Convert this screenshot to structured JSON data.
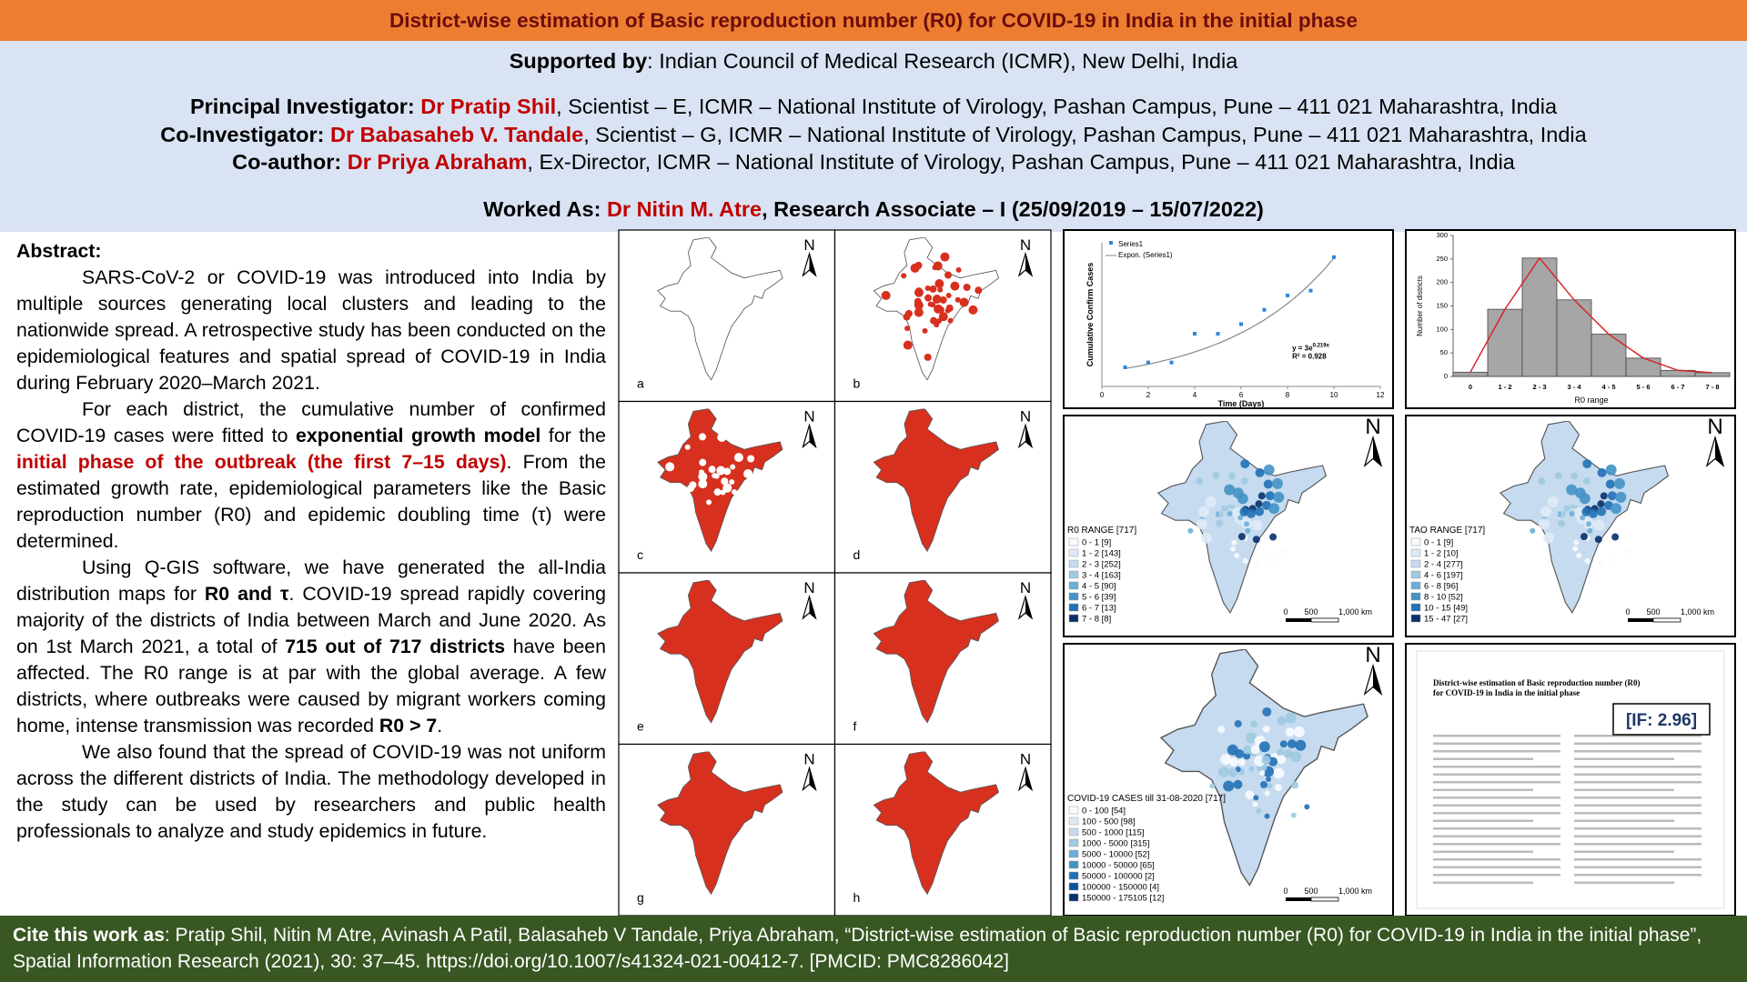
{
  "header": {
    "title": "District-wise estimation of Basic reproduction number (R0) for COVID-19 in India in the initial phase"
  },
  "supported": {
    "label": "Supported by",
    "text": ": Indian Council of Medical Research (ICMR), New Delhi, India"
  },
  "investigators": [
    {
      "role": "Principal Investigator",
      "sep": ": ",
      "name": "Dr Pratip Shil",
      "details": ", Scientist – E, ICMR – National Institute of Virology, Pashan Campus, Pune – 411 021 Maharashtra, India"
    },
    {
      "role": "Co-Investigator",
      "sep": ": ",
      "name": "Dr Babasaheb V. Tandale",
      "details": ", Scientist – G, ICMR – National Institute of Virology, Pashan Campus, Pune – 411 021 Maharashtra, India"
    },
    {
      "role": "Co-author",
      "sep": ": ",
      "name": "Dr Priya Abraham",
      "details": ", Ex-Director, ICMR – National Institute of Virology, Pashan Campus, Pune – 411 021 Maharashtra, India"
    }
  ],
  "worked_as": {
    "label": "Worked As: ",
    "name": "Dr Nitin M. Atre",
    "details": ", Research Associate – I (25/09/2019 – 15/07/2022)"
  },
  "abstract": {
    "heading": "Abstract:",
    "paragraphs": [
      [
        {
          "text": "SARS-CoV-2 or COVID-19 was introduced into India by multiple sources generating local clusters and leading to the nationwide spread. A retrospective study has been conducted on the epidemiological features and spatial spread of COVID-19 in India during February 2020–March 2021.",
          "style": "plain"
        }
      ],
      [
        {
          "text": "For each district, the cumulative number of confirmed COVID-19 cases were fitted to ",
          "style": "plain"
        },
        {
          "text": "exponential growth model",
          "style": "bold"
        },
        {
          "text": " for the ",
          "style": "plain"
        },
        {
          "text": "initial phase of the outbreak (the first 7–15 days)",
          "style": "red"
        },
        {
          "text": ". From the estimated growth rate, epidemiological parameters like the Basic reproduction number (R0) and epidemic doubling time (τ) were determined.",
          "style": "plain"
        }
      ],
      [
        {
          "text": "Using Q-GIS software, we have generated the all-India distribution maps for ",
          "style": "plain"
        },
        {
          "text": "R0 and τ",
          "style": "bold"
        },
        {
          "text": ". COVID-19 spread rapidly covering majority of the districts of India between March and June 2020. As on 1st March 2021, a total of ",
          "style": "plain"
        },
        {
          "text": "715 out of 717 districts",
          "style": "bold"
        },
        {
          "text": " have been affected. The R0 range is at par with the global average. A few districts, where outbreaks were caused by migrant workers coming home, intense transmission was recorded ",
          "style": "plain"
        },
        {
          "text": "R0 > 7",
          "style": "bold"
        },
        {
          "text": ".",
          "style": "plain"
        }
      ],
      [
        {
          "text": "We also found that the spread of COVID-19 was not uniform across the different districts of India. The methodology developed in the study can be used by researchers and public health professionals to analyze and study epidemics in future.",
          "style": "plain"
        }
      ]
    ]
  },
  "maps": {
    "labels": [
      "a",
      "b",
      "c",
      "d",
      "e",
      "f",
      "g",
      "h"
    ],
    "north": "N",
    "fills": [
      "#ffffff",
      "#ffffff",
      "#d7301f",
      "#d7301f",
      "#d7301f",
      "#d7301f",
      "#d7301f",
      "#d7301f"
    ]
  },
  "growth_chart": {
    "type": "scatter",
    "ylabel": "Cumulative Confirm Cases",
    "xlabel": "Time (Days)",
    "series_name": "Series1",
    "trend_name": "Expon. (Series1)",
    "color": "#2e86de",
    "trend_color": "#888888",
    "x": [
      1,
      2,
      3,
      4,
      5,
      6,
      7,
      8,
      9,
      10
    ],
    "values": [
      4,
      5,
      5,
      11,
      11,
      13,
      16,
      19,
      20,
      27
    ],
    "equation": {
      "prefix": "y = 3e",
      "exponent": "0.219x",
      "r2": "R² = 0.928"
    },
    "trend": {
      "a": 3,
      "b": 0.219
    },
    "xlim": [
      0,
      12
    ],
    "xticks": [
      0,
      2,
      4,
      6,
      8,
      10,
      12
    ],
    "ylim": [
      0,
      30
    ]
  },
  "histogram": {
    "type": "bar",
    "ylabel": "Number of districts",
    "xlabel": "R0 range",
    "categories": [
      "0",
      "1 - 2",
      "2 - 3",
      "3 - 4",
      "4 - 5",
      "5 - 6",
      "6 - 7",
      "7 - 8"
    ],
    "values": [
      9,
      143,
      252,
      163,
      90,
      39,
      13,
      8
    ],
    "color": "#a6a6a6",
    "curve_color": "#d62728",
    "ylim": [
      0,
      300
    ],
    "yticks": [
      0,
      50,
      100,
      150,
      200,
      250,
      300
    ]
  },
  "choropleths": [
    {
      "legend_title": "R0 RANGE [717]",
      "items": [
        "0 - 1 [9]",
        "1 - 2 [143]",
        "2 - 3 [252]",
        "3 - 4 [163]",
        "4 - 5 [90]",
        "5 - 6 [39]",
        "6 - 7 [13]",
        "7 - 8 [8]"
      ],
      "colors": [
        "#f7fbff",
        "#deebf7",
        "#c6dbef",
        "#9ecae1",
        "#6baed6",
        "#4292c6",
        "#2171b5",
        "#08306b"
      ]
    },
    {
      "legend_title": "TAO RANGE [717]",
      "items": [
        "0 - 1 [9]",
        "1 - 2 [10]",
        "2 - 4 [277]",
        "4 - 6 [197]",
        "6 - 8 [96]",
        "8 - 10 [52]",
        "10 - 15 [49]",
        "15 - 47 [27]"
      ],
      "colors": [
        "#f7fbff",
        "#deebf7",
        "#c6dbef",
        "#9ecae1",
        "#6baed6",
        "#4292c6",
        "#2171b5",
        "#08306b"
      ]
    },
    {
      "legend_title": "COVID-19 CASES till 31-08-2020 [717]",
      "items": [
        "0 - 100 [54]",
        "100 - 500 [98]",
        "500 - 1000 [115]",
        "1000 - 5000 [315]",
        "5000 - 10000 [52]",
        "10000 - 50000 [65]",
        "50000 - 100000 [2]",
        "100000 - 150000 [4]",
        "150000 - 175105 [12]"
      ],
      "colors": [
        "#f7fbff",
        "#deebf7",
        "#c6dbef",
        "#9ecae1",
        "#6baed6",
        "#4292c6",
        "#2171b5",
        "#08519c",
        "#08306b"
      ]
    }
  ],
  "scale_bar": [
    "0",
    "500",
    "1,000 km"
  ],
  "paper": {
    "title": "District-wise estimation of Basic reproduction number (R0) for COVID-19 in India in the initial phase",
    "impact": "[IF: 2.96]"
  },
  "citation": {
    "label": "Cite this work as",
    "text": ":  Pratip Shil, Nitin M Atre, Avinash A Patil, Balasaheb V Tandale, Priya Abraham, “District-wise estimation of Basic reproduction number (R0) for COVID-19 in India in the initial phase”, Spatial Information Research (2021), 30: 37–45. https://doi.org/10.1007/s41324-021-00412-7. [PMCID: PMC8286042]"
  }
}
